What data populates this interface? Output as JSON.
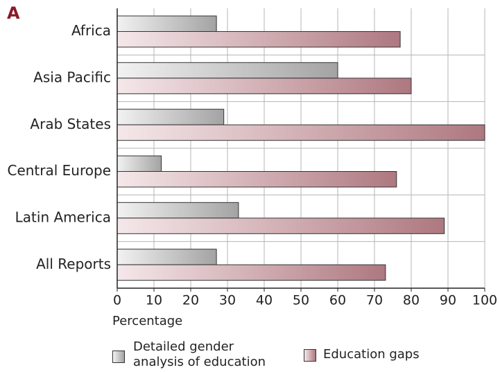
{
  "chart_data": {
    "type": "bar",
    "orientation": "horizontal",
    "panel_label": "A",
    "xlabel": "Percentage",
    "categories": [
      "Africa",
      "Asia Pacific",
      "Arab States",
      "Central Europe",
      "Latin America",
      "All Reports"
    ],
    "series": [
      {
        "name": "Detailed gender analysis of education",
        "color": "#a3a3a3",
        "values": [
          27,
          60,
          29,
          12,
          33,
          27
        ]
      },
      {
        "name": "Education gaps",
        "color": "#ae7880",
        "values": [
          77,
          80,
          100,
          76,
          89,
          73
        ]
      }
    ],
    "xlim": [
      0,
      100
    ],
    "xticks": [
      0,
      10,
      20,
      30,
      40,
      50,
      60,
      70,
      80,
      90,
      100
    ],
    "grid": true,
    "legend": "bottom"
  }
}
